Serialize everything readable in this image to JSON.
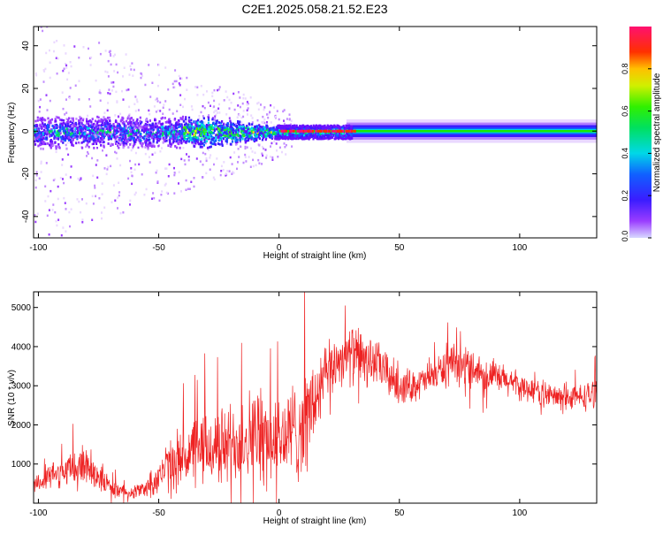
{
  "title": "C2E1.2025.058.21.52.E23",
  "colors": {
    "snr_line": "#ee2222",
    "axis": "#000000",
    "frame_background": "#ffffff"
  },
  "chart_data": [
    {
      "type": "heatmap",
      "title": "C2E1.2025.058.21.52.E23",
      "xlabel": "Height of straight line (km)",
      "ylabel": "Frequency (Hz)",
      "xlim": [
        -102,
        132
      ],
      "ylim": [
        -50,
        49
      ],
      "xticks": [
        -100,
        -50,
        0,
        50,
        100
      ],
      "yticks": [
        -40,
        -20,
        0,
        20,
        40
      ],
      "grid": false,
      "colorbar": {
        "label": "Normalized spectral amplitude",
        "range": [
          0,
          1
        ],
        "ticks": [
          "0.0",
          "0.2",
          "0.4",
          "0.6",
          "0.8"
        ],
        "colormap": "rainbow (purple-blue-cyan-green-yellow-red-magenta)"
      },
      "features": {
        "noisy_band_x_range": [
          -102,
          0
        ],
        "noisy_band_half_width_hz": 8,
        "strong_line_frequency_hz": 0,
        "strong_line_x_range": [
          0,
          132
        ],
        "stable_band_x_range": [
          28,
          132
        ],
        "stable_band_half_width_hz": 4
      }
    },
    {
      "type": "line",
      "xlabel": "Height of straight line (km)",
      "ylabel": "SNR (10 * v/v)",
      "xlim": [
        -102,
        132
      ],
      "ylim": [
        0,
        5400
      ],
      "xticks": [
        -100,
        -50,
        0,
        50,
        100
      ],
      "yticks": [
        1000,
        2000,
        3000,
        4000,
        5000
      ],
      "grid": false,
      "series": [
        {
          "color": "#ee2222",
          "envelope_x": [
            -102,
            -95,
            -90,
            -85,
            -80,
            -75,
            -70,
            -65,
            -60,
            -55,
            -50,
            -45,
            -40,
            -35,
            -30,
            -25,
            -20,
            -15,
            -10,
            -5,
            0,
            5,
            8,
            10,
            15,
            20,
            25,
            30,
            35,
            40,
            45,
            50,
            55,
            60,
            65,
            70,
            75,
            80,
            85,
            90,
            95,
            100,
            105,
            110,
            115,
            120,
            125,
            132
          ],
          "mean_y": [
            500,
            700,
            800,
            900,
            1000,
            700,
            400,
            300,
            300,
            400,
            700,
            1000,
            1200,
            1300,
            1400,
            1400,
            1500,
            1700,
            1800,
            1700,
            1600,
            1800,
            1900,
            2000,
            2600,
            3300,
            3700,
            3800,
            3700,
            3600,
            3300,
            3000,
            3000,
            3100,
            3300,
            3500,
            3500,
            3500,
            3300,
            3200,
            3100,
            3000,
            2900,
            2800,
            2700,
            2700,
            2700,
            2800
          ],
          "spread": [
            300,
            400,
            500,
            600,
            700,
            500,
            300,
            200,
            200,
            300,
            600,
            800,
            1000,
            1100,
            1200,
            1200,
            1300,
            1400,
            1400,
            1400,
            1400,
            1500,
            1600,
            1700,
            1400,
            900,
            800,
            900,
            900,
            700,
            700,
            600,
            500,
            500,
            500,
            600,
            600,
            600,
            500,
            500,
            500,
            400,
            400,
            400,
            400,
            400,
            400,
            500
          ]
        }
      ]
    }
  ]
}
